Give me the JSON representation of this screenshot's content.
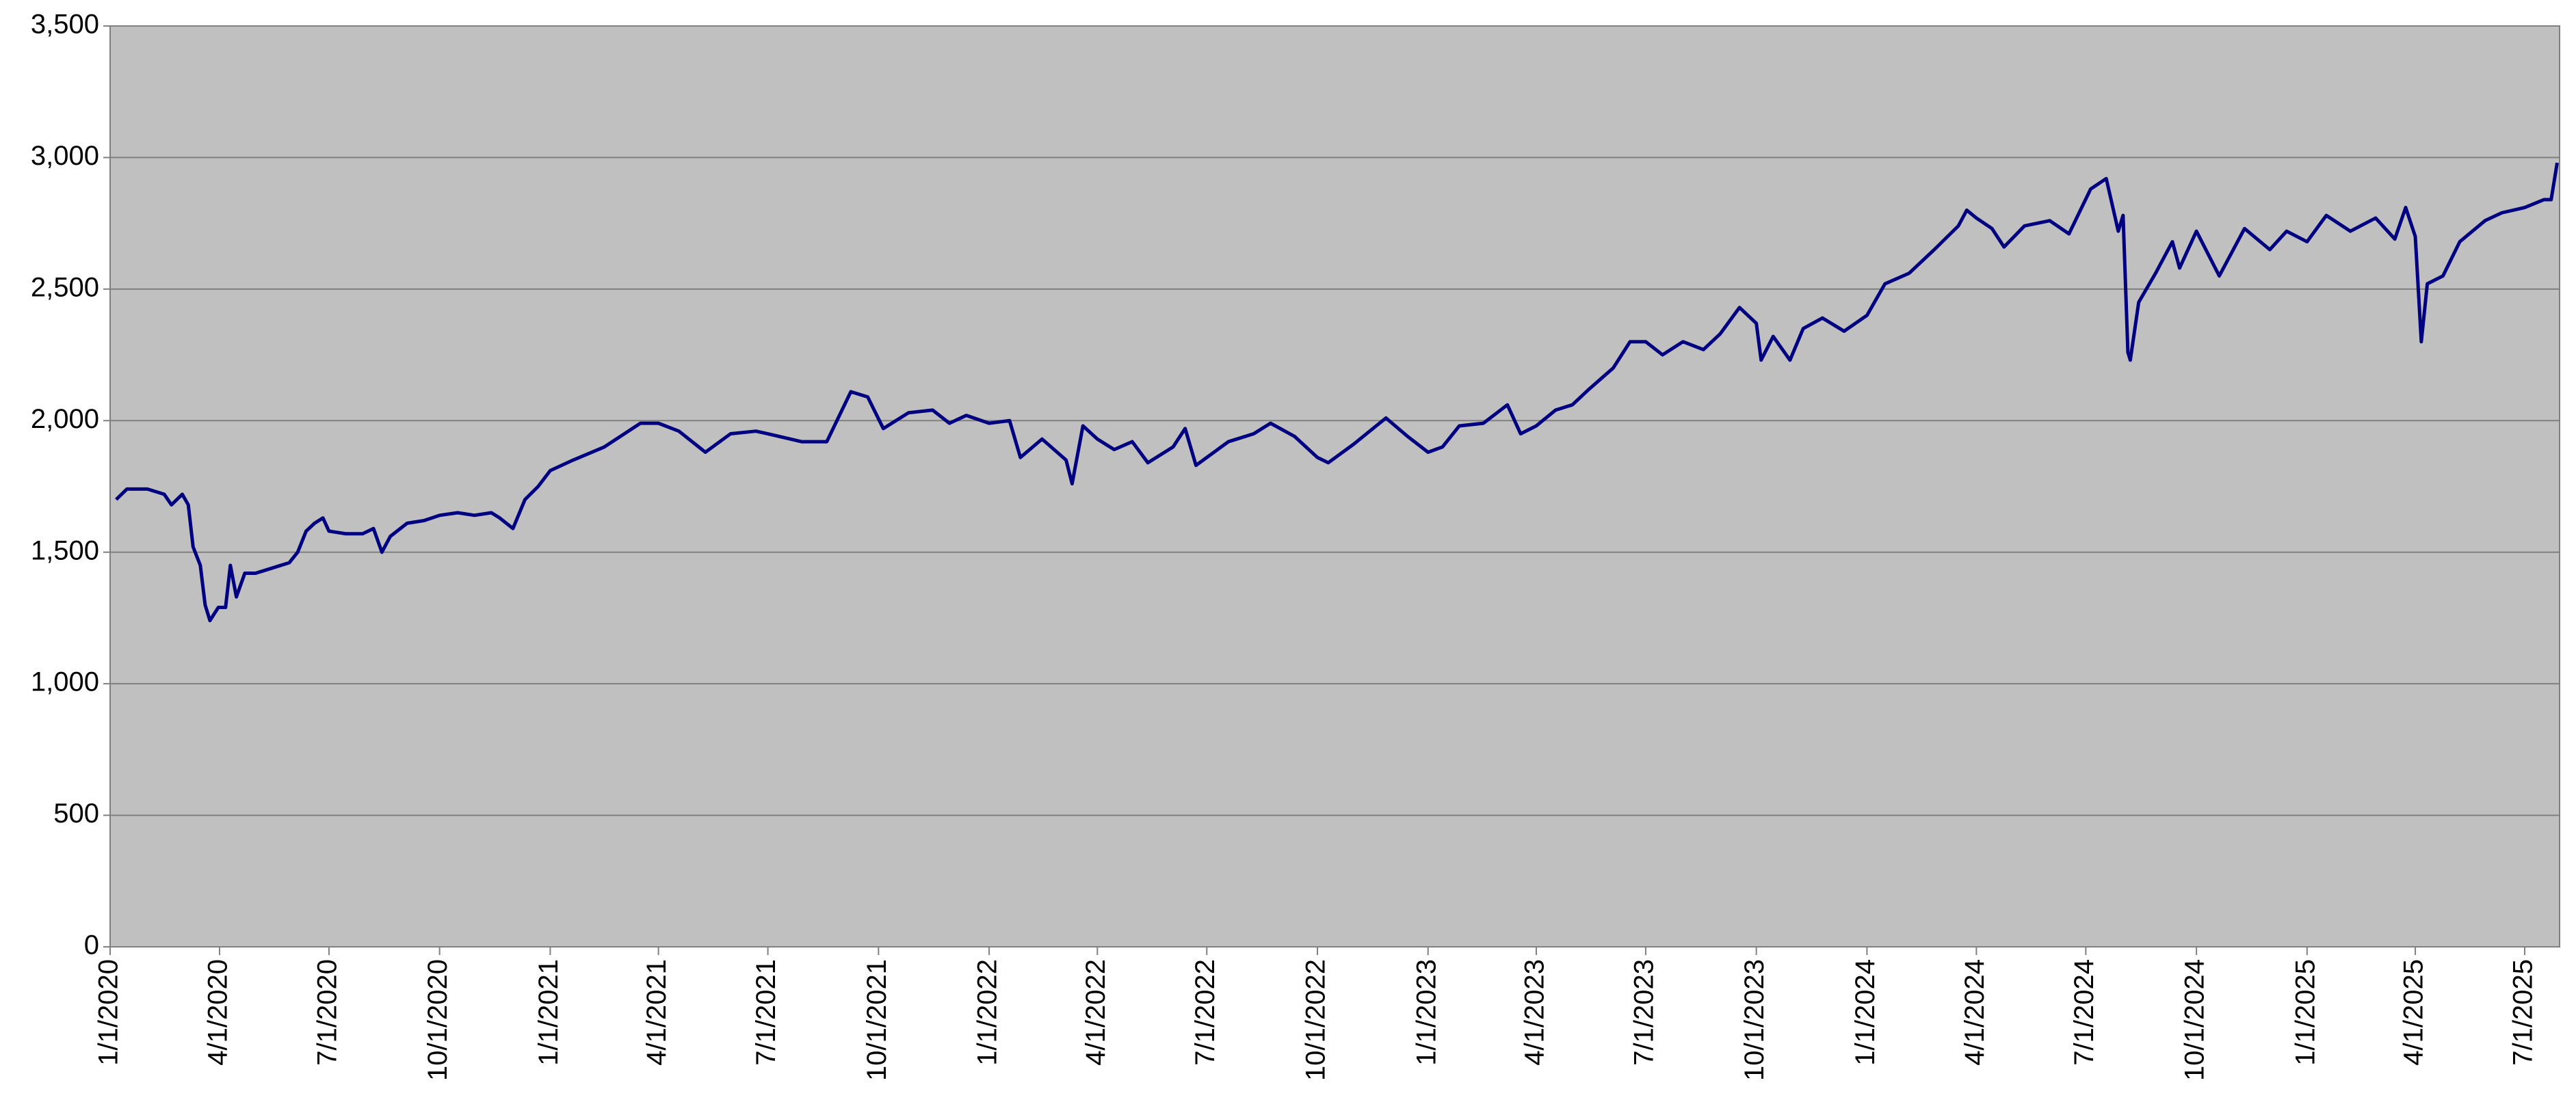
{
  "chart_data": {
    "type": "line",
    "color": "#000080",
    "background": "#c0c0c0",
    "grid": true,
    "x": [
      "1/6/2020",
      "1/15/2020",
      "2/1/2020",
      "2/15/2020",
      "2/21/2020",
      "3/1/2020",
      "3/6/2020",
      "3/10/2020",
      "3/16/2020",
      "3/20/2020",
      "3/24/2020",
      "3/31/2020",
      "4/6/2020",
      "4/10/2020",
      "4/15/2020",
      "4/22/2020",
      "5/1/2020",
      "5/15/2020",
      "5/29/2020",
      "6/5/2020",
      "6/12/2020",
      "6/19/2020",
      "6/26/2020",
      "7/1/2020",
      "7/15/2020",
      "7/29/2020",
      "8/7/2020",
      "8/14/2020",
      "8/21/2020",
      "9/4/2020",
      "9/18/2020",
      "10/1/2020",
      "10/16/2020",
      "10/30/2020",
      "11/13/2020",
      "11/20/2020",
      "12/1/2020",
      "12/11/2020",
      "12/22/2020",
      "1/1/2021",
      "1/20/2021",
      "2/15/2021",
      "3/17/2021",
      "4/1/2021",
      "4/18/2021",
      "5/10/2021",
      "5/31/2021",
      "6/21/2021",
      "7/1/2021",
      "7/29/2021",
      "8/19/2021",
      "9/8/2021",
      "9/22/2021",
      "10/5/2021",
      "10/26/2021",
      "11/15/2021",
      "11/29/2021",
      "12/13/2021",
      "1/1/2022",
      "1/18/2022",
      "1/27/2022",
      "2/14/2022",
      "3/6/2022",
      "3/11/2022",
      "3/20/2022",
      "4/1/2022",
      "4/15/2022",
      "4/30/2022",
      "5/13/2022",
      "6/3/2022",
      "6/13/2022",
      "6/22/2022",
      "7/1/2022",
      "7/19/2022",
      "8/9/2022",
      "8/23/2022",
      "9/12/2022",
      "10/1/2022",
      "10/10/2022",
      "10/31/2022",
      "11/27/2022",
      "12/15/2022",
      "1/1/2023",
      "1/13/2023",
      "1/27/2023",
      "2/16/2023",
      "3/8/2023",
      "3/19/2023",
      "4/1/2023",
      "4/17/2023",
      "5/1/2023",
      "5/15/2023",
      "6/4/2023",
      "6/18/2023",
      "7/1/2023",
      "7/15/2023",
      "8/1/2023",
      "8/18/2023",
      "9/1/2023",
      "9/17/2023",
      "10/1/2023",
      "10/5/2023",
      "10/15/2023",
      "10/29/2023",
      "11/9/2023",
      "11/25/2023",
      "12/13/2023",
      "1/1/2024",
      "1/16/2024",
      "2/5/2024",
      "2/26/2024",
      "3/17/2024",
      "3/24/2024",
      "4/1/2024",
      "4/14/2024",
      "4/24/2024",
      "5/11/2024",
      "6/1/2024",
      "6/17/2024",
      "7/5/2024",
      "7/18/2024",
      "7/28/2024",
      "8/1/2024",
      "8/5/2024",
      "8/7/2024",
      "8/14/2024",
      "8/28/2024",
      "9/11/2024",
      "9/17/2024",
      "10/1/2024",
      "10/20/2024",
      "11/10/2024",
      "12/1/2024",
      "12/15/2024",
      "1/1/2025",
      "1/17/2025",
      "2/6/2025",
      "2/27/2025",
      "3/15/2025",
      "3/24/2025",
      "4/1/2025",
      "4/6/2025",
      "4/11/2025",
      "4/24/2025",
      "5/8/2025",
      "5/29/2025",
      "6/12/2025",
      "7/1/2025",
      "7/17/2025",
      "7/23/2025",
      "7/28/2025"
    ],
    "values": [
      1700,
      1740,
      1740,
      1720,
      1680,
      1720,
      1680,
      1520,
      1450,
      1300,
      1240,
      1290,
      1290,
      1450,
      1330,
      1420,
      1420,
      1440,
      1460,
      1500,
      1580,
      1610,
      1630,
      1580,
      1570,
      1570,
      1590,
      1500,
      1560,
      1610,
      1620,
      1640,
      1650,
      1640,
      1650,
      1630,
      1590,
      1700,
      1750,
      1810,
      1850,
      1900,
      1990,
      1990,
      1960,
      1880,
      1950,
      1960,
      1950,
      1920,
      1920,
      2110,
      2090,
      1970,
      2030,
      2040,
      1990,
      2020,
      1990,
      2000,
      1860,
      1930,
      1850,
      1760,
      1980,
      1930,
      1890,
      1920,
      1840,
      1900,
      1970,
      1830,
      1860,
      1920,
      1950,
      1990,
      1940,
      1860,
      1840,
      1910,
      2010,
      1940,
      1880,
      1900,
      1980,
      1990,
      2060,
      1950,
      1980,
      2040,
      2060,
      2120,
      2200,
      2300,
      2300,
      2250,
      2300,
      2270,
      2330,
      2430,
      2370,
      2230,
      2320,
      2230,
      2350,
      2390,
      2340,
      2400,
      2520,
      2560,
      2650,
      2740,
      2800,
      2770,
      2730,
      2660,
      2740,
      2760,
      2710,
      2880,
      2920,
      2720,
      2780,
      2260,
      2230,
      2450,
      2560,
      2680,
      2580,
      2720,
      2550,
      2730,
      2650,
      2720,
      2680,
      2780,
      2720,
      2770,
      2690,
      2810,
      2700,
      2300,
      2520,
      2550,
      2680,
      2760,
      2790,
      2810,
      2840,
      2840,
      2980
    ],
    "xlim": [
      "1/1/2020",
      "7/30/2025"
    ],
    "xticks": [
      "1/1/2020",
      "4/1/2020",
      "7/1/2020",
      "10/1/2020",
      "1/1/2021",
      "4/1/2021",
      "7/1/2021",
      "10/1/2021",
      "1/1/2022",
      "4/1/2022",
      "7/1/2022",
      "10/1/2022",
      "1/1/2023",
      "4/1/2023",
      "7/1/2023",
      "10/1/2023",
      "1/1/2024",
      "4/1/2024",
      "7/1/2024",
      "10/1/2024",
      "1/1/2025",
      "4/1/2025",
      "7/1/2025"
    ],
    "ylim": [
      0,
      3500
    ],
    "yticks": [
      0,
      500,
      {
        "value": 1000,
        "label": "1,000"
      },
      {
        "value": 1500,
        "label": "1,500"
      },
      {
        "value": 2000,
        "label": "2,000"
      },
      {
        "value": 2500,
        "label": "2,500"
      },
      {
        "value": 3000,
        "label": "3,000"
      },
      {
        "value": 3500,
        "label": "3,500"
      }
    ]
  }
}
